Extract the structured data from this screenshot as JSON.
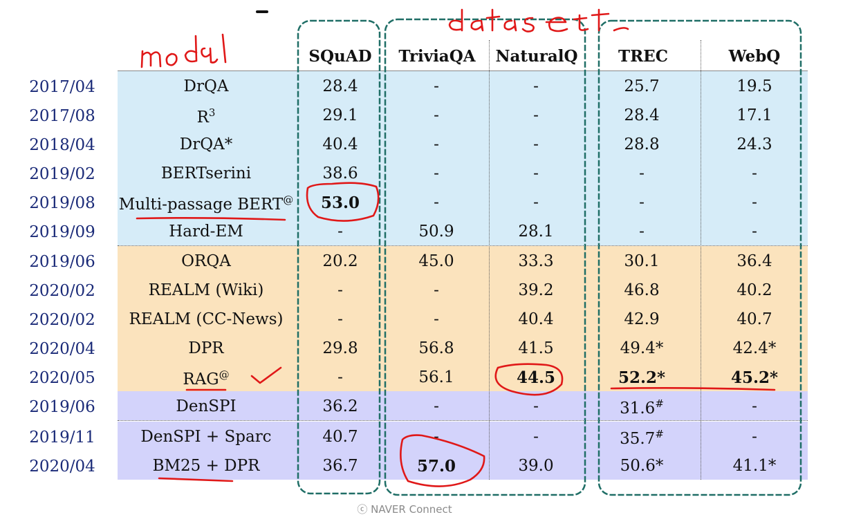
{
  "headers": {
    "squad": "SQuAD",
    "triviaqa": "TriviaQA",
    "naturalq": "NaturalQ",
    "trec": "TREC",
    "webq": "WebQ"
  },
  "rows": [
    {
      "date": "2017/04",
      "model": "DrQA",
      "model_sup": "",
      "squad": "28.4",
      "triviaqa": "-",
      "naturalq": "-",
      "trec": "25.7",
      "webq": "19.5",
      "group": "blue"
    },
    {
      "date": "2017/08",
      "model": "R",
      "model_sup": "3",
      "squad": "29.1",
      "triviaqa": "-",
      "naturalq": "-",
      "trec": "28.4",
      "webq": "17.1",
      "group": "blue"
    },
    {
      "date": "2018/04",
      "model": "DrQA*",
      "model_sup": "",
      "squad": "40.4",
      "triviaqa": "-",
      "naturalq": "-",
      "trec": "28.8",
      "webq": "24.3",
      "group": "blue"
    },
    {
      "date": "2019/02",
      "model": "BERTserini",
      "model_sup": "",
      "squad": "38.6",
      "triviaqa": "-",
      "naturalq": "-",
      "trec": "-",
      "webq": "-",
      "group": "blue"
    },
    {
      "date": "2019/08",
      "model": "Multi-passage BERT",
      "model_sup": "@",
      "squad": "53.0",
      "triviaqa": "-",
      "naturalq": "-",
      "trec": "-",
      "webq": "-",
      "group": "blue"
    },
    {
      "date": "2019/09",
      "model": "Hard-EM",
      "model_sup": "",
      "squad": "-",
      "triviaqa": "50.9",
      "naturalq": "28.1",
      "trec": "-",
      "webq": "-",
      "group": "blue"
    },
    {
      "date": "2019/06",
      "model": "ORQA",
      "model_sup": "",
      "squad": "20.2",
      "triviaqa": "45.0",
      "naturalq": "33.3",
      "trec": "30.1",
      "webq": "36.4",
      "group": "orange"
    },
    {
      "date": "2020/02",
      "model": "REALM (Wiki)",
      "model_sup": "",
      "squad": "-",
      "triviaqa": "-",
      "naturalq": "39.2",
      "trec": "46.8",
      "webq": "40.2",
      "group": "orange"
    },
    {
      "date": "2020/02",
      "model": "REALM (CC-News)",
      "model_sup": "",
      "squad": "-",
      "triviaqa": "-",
      "naturalq": "40.4",
      "trec": "42.9",
      "webq": "40.7",
      "group": "orange"
    },
    {
      "date": "2020/04",
      "model": "DPR",
      "model_sup": "",
      "squad": "29.8",
      "triviaqa": "56.8",
      "naturalq": "41.5",
      "trec": "49.4*",
      "webq": "42.4*",
      "group": "orange"
    },
    {
      "date": "2020/05",
      "model": "RAG",
      "model_sup": "@",
      "squad": "-",
      "triviaqa": "56.1",
      "naturalq": "44.5",
      "trec": "52.2*",
      "webq": "45.2*",
      "group": "orange"
    },
    {
      "date": "2019/06",
      "model": "DenSPI",
      "model_sup": "",
      "squad": "36.2",
      "triviaqa": "-",
      "naturalq": "-",
      "trec": "31.6#",
      "webq": "-",
      "group": "purple"
    },
    {
      "date": "2019/11",
      "model": "DenSPI + Sparc",
      "model_sup": "",
      "squad": "40.7",
      "triviaqa": "-",
      "naturalq": "-",
      "trec": "35.7#",
      "webq": "-",
      "group": "purple"
    },
    {
      "date": "2020/04",
      "model": "BM25 + DPR",
      "model_sup": "",
      "squad": "36.7",
      "triviaqa": "57.0",
      "naturalq": "39.0",
      "trec": "50.6*",
      "webq": "41.1*",
      "group": "purple"
    }
  ],
  "bold_cells": [
    "4.squad",
    "10.naturalq",
    "10.trec",
    "10.webq",
    "13.triviaqa"
  ],
  "colors": {
    "blue": "#d6ecf8",
    "orange": "#fbe3bd",
    "purple": "#d3d3fb",
    "annotation_red": "#e01818",
    "annotation_teal": "#1f6e66",
    "date_text": "#1a2a78"
  },
  "handwriting": {
    "model": "model",
    "dataset": "dataset"
  },
  "footer": "ⓒ NAVER Connect"
}
